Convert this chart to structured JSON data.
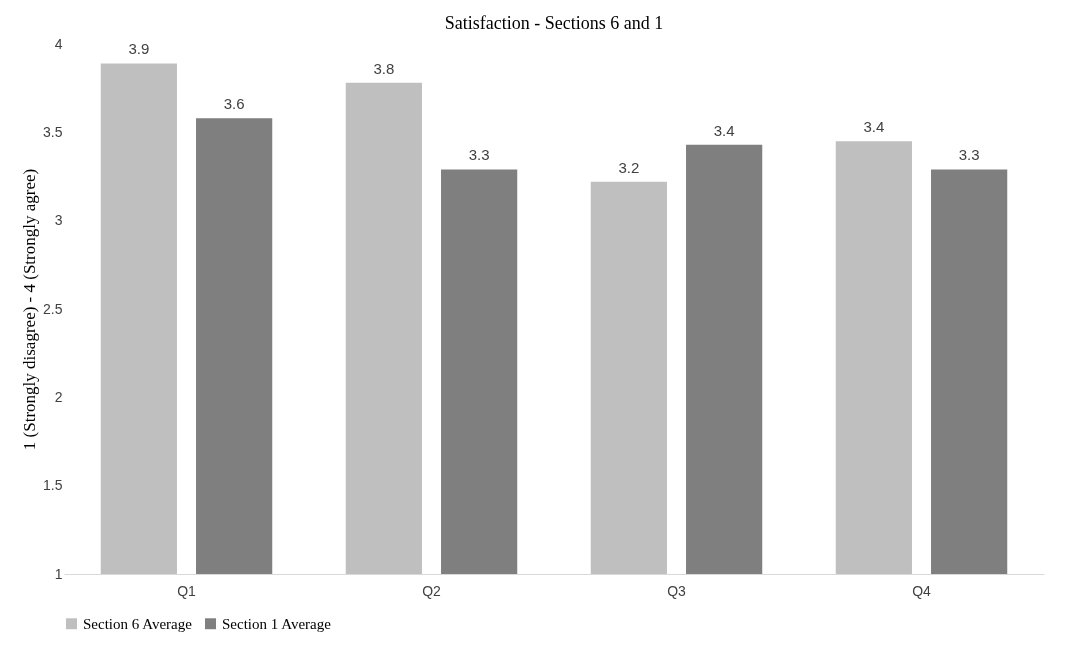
{
  "chart_data": {
    "type": "bar",
    "title": "Satisfaction - Sections 6 and 1",
    "ylabel": "1 (Strongly disagree) - 4 (Strongly agree)",
    "categories": [
      "Q1",
      "Q2",
      "Q3",
      "Q4"
    ],
    "series": [
      {
        "name": "Section 6 Average",
        "color": "#bfbfbf",
        "values": [
          3.89,
          3.78,
          3.22,
          3.45
        ],
        "value_labels": [
          "3.9",
          "3.8",
          "3.2",
          "3.4"
        ]
      },
      {
        "name": "Section 1 Average",
        "color": "#7f7f7f",
        "values": [
          3.58,
          3.29,
          3.43,
          3.29
        ],
        "value_labels": [
          "3.6",
          "3.3",
          "3.4",
          "3.3"
        ]
      }
    ],
    "ylim": [
      1,
      4
    ],
    "yticks": [
      1,
      1.5,
      2,
      2.5,
      3,
      3.5,
      4
    ],
    "grid": false,
    "legend": "bottom"
  }
}
